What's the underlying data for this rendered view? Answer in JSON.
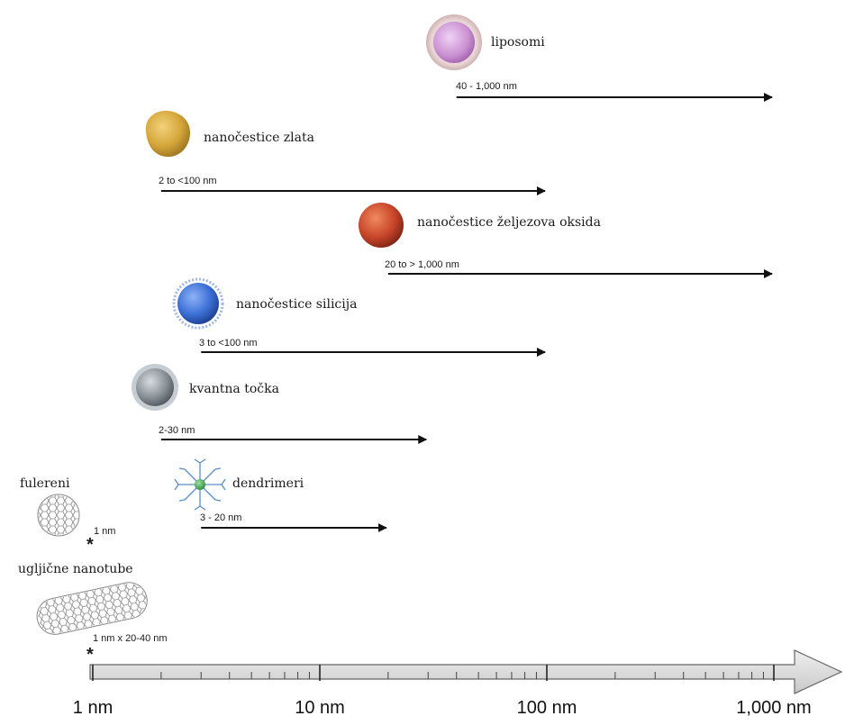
{
  "scale": {
    "ticks": [
      {
        "value": 1,
        "label": "1 nm"
      },
      {
        "value": 10,
        "label": "10 nm"
      },
      {
        "value": 100,
        "label": "100 nm"
      },
      {
        "value": 1000,
        "label": "1,000 nm"
      }
    ],
    "axis_fill": "#d9d9d9"
  },
  "particles": {
    "liposomi": {
      "name": "liposomi",
      "range": "40 - 1,000 nm",
      "from": 40,
      "to": 1000,
      "color": "#c98fd1",
      "icon": "liposome-icon"
    },
    "zlato": {
      "name": "nanočestice zlata",
      "range": "2 to <100 nm",
      "from": 2,
      "to": 100,
      "color": "#d4a63a",
      "icon": "gold-nanoparticle-icon"
    },
    "oksid": {
      "name": "nanočestice željezova oksida",
      "range": "20 to > 1,000 nm",
      "from": 20,
      "to": 1000,
      "color": "#c8452a",
      "icon": "iron-oxide-nanoparticle-icon"
    },
    "silicij": {
      "name": "nanočestice silicija",
      "range": "3 to <100 nm",
      "from": 3,
      "to": 100,
      "color": "#3b6fd6",
      "icon": "silica-nanoparticle-icon"
    },
    "kvantna": {
      "name": "kvantna točka",
      "range": "2-30 nm",
      "from": 2,
      "to": 30,
      "color": "#8a9299",
      "icon": "quantum-dot-icon"
    },
    "dendrimeri": {
      "name": "dendrimeri",
      "range": "3 - 20 nm",
      "from": 3,
      "to": 20,
      "color": "#3aa04a",
      "icon": "dendrimer-icon"
    },
    "fulereni": {
      "name": "fulereni",
      "range": "1 nm",
      "from": 1,
      "icon": "fullerene-icon"
    },
    "nanotube": {
      "name": "ugljične nanotube",
      "range": "1 nm x 20-40 nm",
      "from": 1,
      "icon": "carbon-nanotube-icon"
    }
  }
}
